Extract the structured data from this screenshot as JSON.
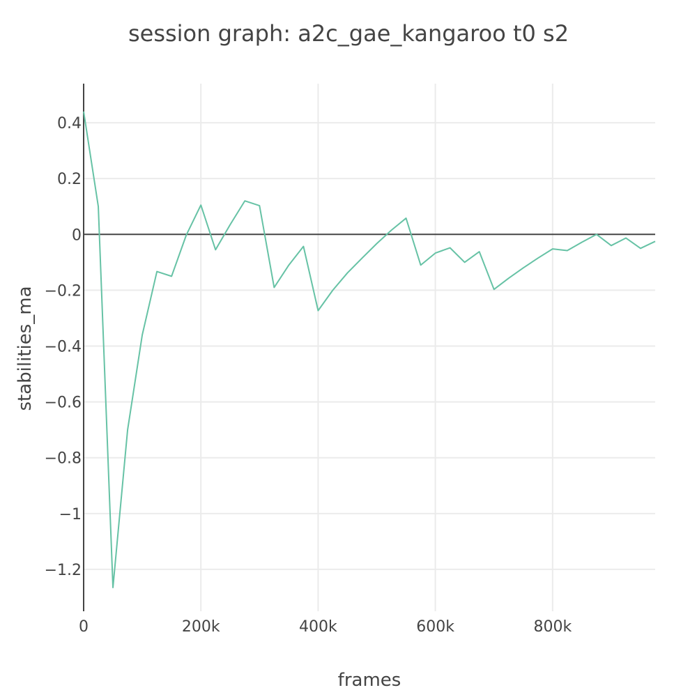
{
  "chart_data": {
    "type": "line",
    "title": "session graph: a2c_gae_kangaroo t0 s2",
    "xlabel": "frames",
    "ylabel": "stabilities_ma",
    "xlim": [
      0,
      975000
    ],
    "ylim": [
      -1.35,
      0.54
    ],
    "grid": true,
    "legend": "none",
    "x_ticks": [
      {
        "value": 0,
        "label": "0"
      },
      {
        "value": 200000,
        "label": "200k"
      },
      {
        "value": 400000,
        "label": "400k"
      },
      {
        "value": 600000,
        "label": "600k"
      },
      {
        "value": 800000,
        "label": "800k"
      }
    ],
    "y_ticks": [
      {
        "value": 0.4,
        "label": "0.4"
      },
      {
        "value": 0.2,
        "label": "0.2"
      },
      {
        "value": 0,
        "label": "0"
      },
      {
        "value": -0.2,
        "label": "−0.2"
      },
      {
        "value": -0.4,
        "label": "−0.4"
      },
      {
        "value": -0.6,
        "label": "−0.6"
      },
      {
        "value": -0.8,
        "label": "−0.8"
      },
      {
        "value": -1,
        "label": "−1"
      },
      {
        "value": -1.2,
        "label": "−1.2"
      }
    ],
    "series": [
      {
        "color": "#66c2a5",
        "x": [
          0,
          25000,
          50000,
          75000,
          100000,
          125000,
          150000,
          175000,
          200000,
          225000,
          250000,
          275000,
          300000,
          325000,
          350000,
          375000,
          400000,
          425000,
          450000,
          475000,
          500000,
          525000,
          550000,
          575000,
          600000,
          625000,
          650000,
          675000,
          700000,
          725000,
          750000,
          775000,
          800000,
          825000,
          850000,
          875000,
          900000,
          925000,
          950000,
          975000
        ],
        "y": [
          0.44,
          0.1,
          -1.265,
          -0.7,
          -0.36,
          -0.133,
          -0.15,
          -0.003,
          0.105,
          -0.055,
          0.035,
          0.12,
          0.103,
          -0.19,
          -0.11,
          -0.043,
          -0.273,
          -0.2,
          -0.138,
          -0.085,
          -0.033,
          0.015,
          0.058,
          -0.11,
          -0.067,
          -0.048,
          -0.1,
          -0.062,
          -0.197,
          -0.157,
          -0.12,
          -0.085,
          -0.052,
          -0.058,
          -0.028,
          0.0,
          -0.04,
          -0.013,
          -0.05,
          -0.025
        ]
      }
    ]
  }
}
